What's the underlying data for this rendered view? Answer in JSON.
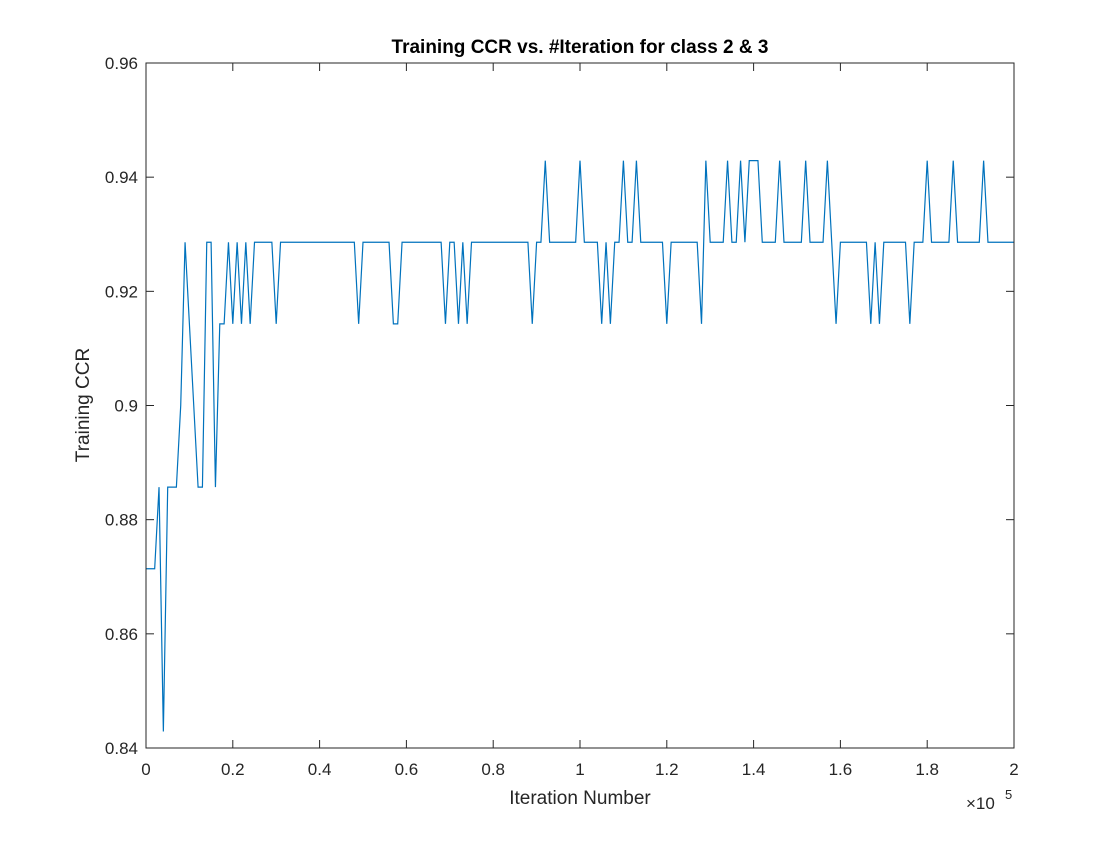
{
  "chart_data": {
    "type": "line",
    "title": "Training CCR vs. #Iteration for class 2 & 3",
    "xlabel": "Iteration Number",
    "ylabel": "Training CCR",
    "x_exponent_label": "×10",
    "x_exponent_power": "5",
    "xlim": [
      0,
      2
    ],
    "ylim": [
      0.84,
      0.96
    ],
    "xticks": [
      0,
      0.2,
      0.4,
      0.6,
      0.8,
      1,
      1.2,
      1.4,
      1.6,
      1.8,
      2
    ],
    "xtick_labels": [
      "0",
      "0.2",
      "0.4",
      "0.6",
      "0.8",
      "1",
      "1.2",
      "1.4",
      "1.6",
      "1.8",
      "2"
    ],
    "yticks": [
      0.84,
      0.86,
      0.88,
      0.9,
      0.92,
      0.94,
      0.96
    ],
    "ytick_labels": [
      "0.84",
      "0.86",
      "0.88",
      "0.9",
      "0.92",
      "0.94",
      "0.96"
    ],
    "grid": false,
    "line_color": "#0072BD",
    "x_units_note": "x values in units of 10^5 iterations",
    "points": [
      [
        0.0,
        0.8714
      ],
      [
        0.01,
        0.8714
      ],
      [
        0.015,
        0.8714
      ],
      [
        0.02,
        0.8714
      ],
      [
        0.03,
        0.8857
      ],
      [
        0.04,
        0.8429
      ],
      [
        0.05,
        0.8857
      ],
      [
        0.06,
        0.8857
      ],
      [
        0.07,
        0.8857
      ],
      [
        0.08,
        0.9
      ],
      [
        0.09,
        0.9286
      ],
      [
        0.1,
        0.9143
      ],
      [
        0.11,
        0.9
      ],
      [
        0.12,
        0.8857
      ],
      [
        0.13,
        0.8857
      ],
      [
        0.14,
        0.9286
      ],
      [
        0.15,
        0.9286
      ],
      [
        0.16,
        0.8857
      ],
      [
        0.17,
        0.9143
      ],
      [
        0.18,
        0.9143
      ],
      [
        0.19,
        0.9286
      ],
      [
        0.2,
        0.9143
      ],
      [
        0.21,
        0.9286
      ],
      [
        0.22,
        0.9143
      ],
      [
        0.23,
        0.9286
      ],
      [
        0.24,
        0.9143
      ],
      [
        0.25,
        0.9286
      ],
      [
        0.26,
        0.9286
      ],
      [
        0.27,
        0.9286
      ],
      [
        0.28,
        0.9286
      ],
      [
        0.29,
        0.9286
      ],
      [
        0.3,
        0.9143
      ],
      [
        0.31,
        0.9286
      ],
      [
        0.32,
        0.9286
      ],
      [
        0.4,
        0.9286
      ],
      [
        0.47,
        0.9286
      ],
      [
        0.48,
        0.9286
      ],
      [
        0.49,
        0.9143
      ],
      [
        0.5,
        0.9286
      ],
      [
        0.56,
        0.9286
      ],
      [
        0.57,
        0.9143
      ],
      [
        0.58,
        0.9143
      ],
      [
        0.59,
        0.9286
      ],
      [
        0.65,
        0.9286
      ],
      [
        0.68,
        0.9286
      ],
      [
        0.69,
        0.9143
      ],
      [
        0.7,
        0.9286
      ],
      [
        0.71,
        0.9286
      ],
      [
        0.72,
        0.9143
      ],
      [
        0.73,
        0.9286
      ],
      [
        0.74,
        0.9143
      ],
      [
        0.75,
        0.9286
      ],
      [
        0.82,
        0.9286
      ],
      [
        0.88,
        0.9286
      ],
      [
        0.89,
        0.9143
      ],
      [
        0.9,
        0.9286
      ],
      [
        0.91,
        0.9286
      ],
      [
        0.92,
        0.9429
      ],
      [
        0.93,
        0.9286
      ],
      [
        0.99,
        0.9286
      ],
      [
        1.0,
        0.9429
      ],
      [
        1.01,
        0.9286
      ],
      [
        1.04,
        0.9286
      ],
      [
        1.05,
        0.9143
      ],
      [
        1.06,
        0.9286
      ],
      [
        1.07,
        0.9143
      ],
      [
        1.08,
        0.9286
      ],
      [
        1.09,
        0.9286
      ],
      [
        1.1,
        0.9429
      ],
      [
        1.11,
        0.9286
      ],
      [
        1.12,
        0.9286
      ],
      [
        1.13,
        0.9429
      ],
      [
        1.14,
        0.9286
      ],
      [
        1.19,
        0.9286
      ],
      [
        1.2,
        0.9143
      ],
      [
        1.21,
        0.9286
      ],
      [
        1.27,
        0.9286
      ],
      [
        1.28,
        0.9143
      ],
      [
        1.29,
        0.9429
      ],
      [
        1.3,
        0.9286
      ],
      [
        1.33,
        0.9286
      ],
      [
        1.34,
        0.9429
      ],
      [
        1.35,
        0.9286
      ],
      [
        1.36,
        0.9286
      ],
      [
        1.37,
        0.9429
      ],
      [
        1.38,
        0.9286
      ],
      [
        1.39,
        0.9429
      ],
      [
        1.41,
        0.9429
      ],
      [
        1.42,
        0.9286
      ],
      [
        1.45,
        0.9286
      ],
      [
        1.46,
        0.9429
      ],
      [
        1.47,
        0.9286
      ],
      [
        1.51,
        0.9286
      ],
      [
        1.52,
        0.9429
      ],
      [
        1.53,
        0.9286
      ],
      [
        1.56,
        0.9286
      ],
      [
        1.57,
        0.9429
      ],
      [
        1.58,
        0.9286
      ],
      [
        1.59,
        0.9143
      ],
      [
        1.6,
        0.9286
      ],
      [
        1.66,
        0.9286
      ],
      [
        1.67,
        0.9143
      ],
      [
        1.68,
        0.9286
      ],
      [
        1.69,
        0.9143
      ],
      [
        1.7,
        0.9286
      ],
      [
        1.75,
        0.9286
      ],
      [
        1.76,
        0.9143
      ],
      [
        1.77,
        0.9286
      ],
      [
        1.79,
        0.9286
      ],
      [
        1.8,
        0.9429
      ],
      [
        1.81,
        0.9286
      ],
      [
        1.85,
        0.9286
      ],
      [
        1.86,
        0.9429
      ],
      [
        1.87,
        0.9286
      ],
      [
        1.92,
        0.9286
      ],
      [
        1.93,
        0.9429
      ],
      [
        1.94,
        0.9286
      ],
      [
        2.0,
        0.9286
      ]
    ]
  }
}
